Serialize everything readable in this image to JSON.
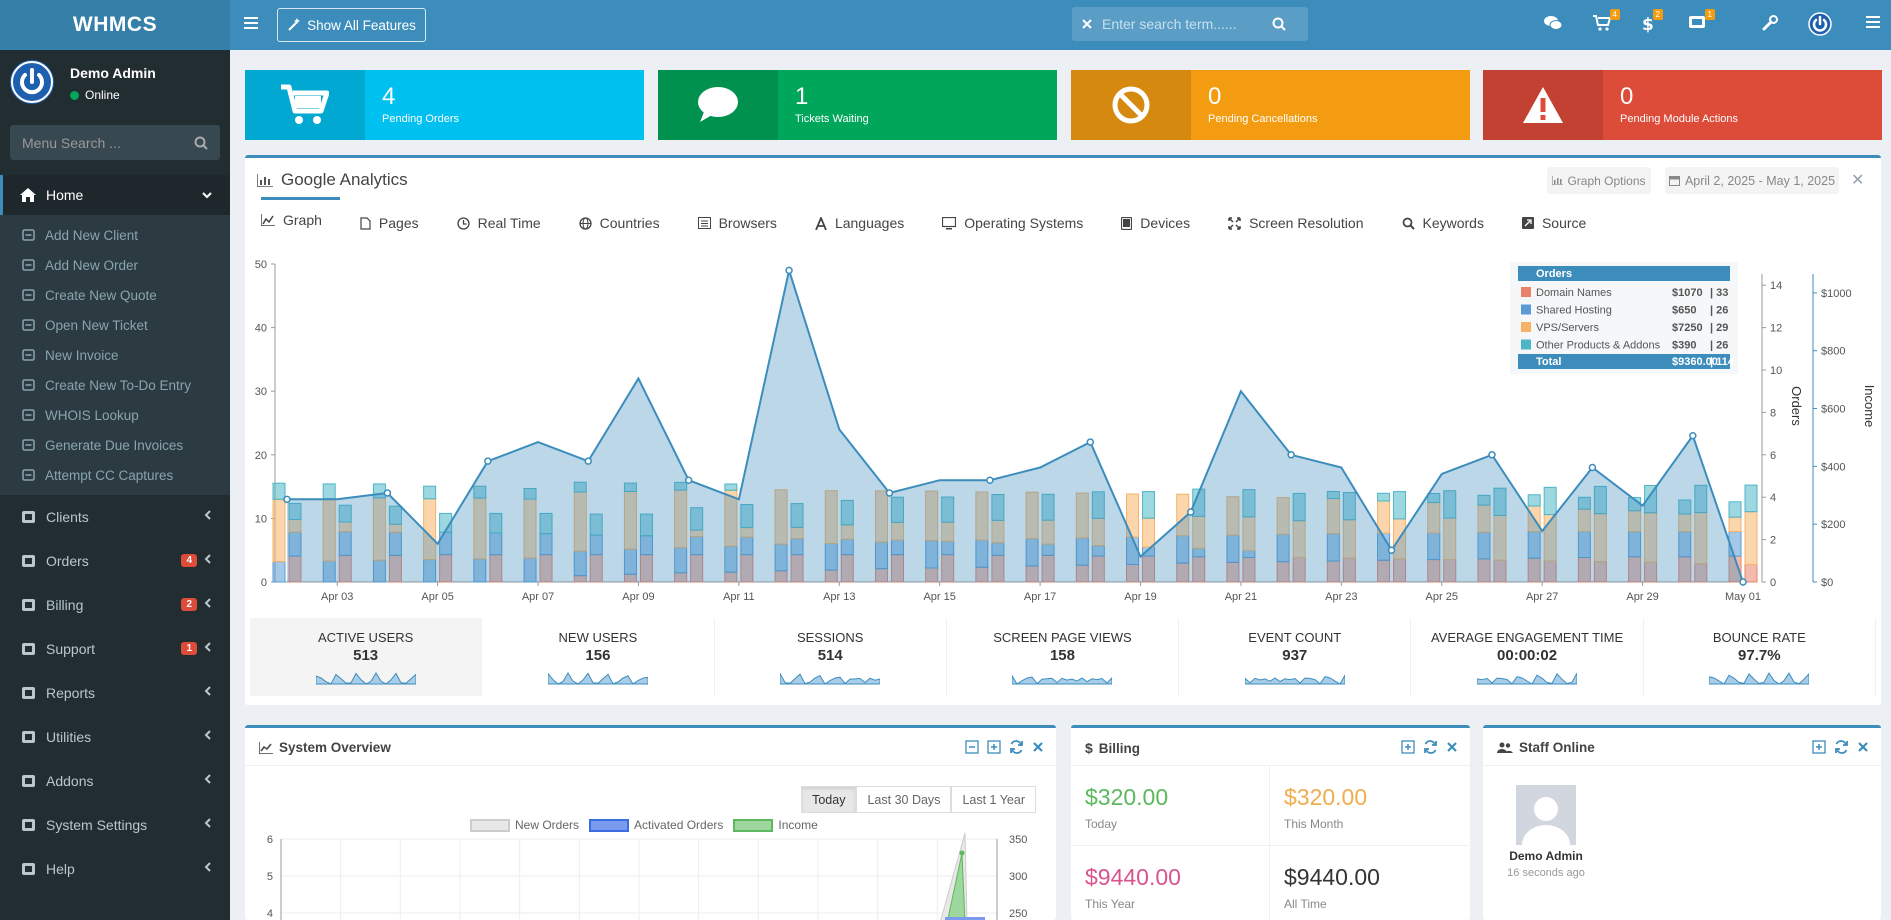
{
  "brand": "WHMCS",
  "user": {
    "name": "Demo Admin",
    "status": "Online"
  },
  "menu_search": {
    "placeholder": "Menu Search ..."
  },
  "nav": {
    "home": "Home",
    "home_sub": [
      "Add New Client",
      "Add New Order",
      "Create New Quote",
      "Open New Ticket",
      "New Invoice",
      "Create New To-Do Entry",
      "WHOIS Lookup",
      "Generate Due Invoices",
      "Attempt CC Captures"
    ],
    "items": [
      {
        "label": "Clients",
        "badge": ""
      },
      {
        "label": "Orders",
        "badge": "4"
      },
      {
        "label": "Billing",
        "badge": "2"
      },
      {
        "label": "Support",
        "badge": "1"
      },
      {
        "label": "Reports",
        "badge": ""
      },
      {
        "label": "Utilities",
        "badge": ""
      },
      {
        "label": "Addons",
        "badge": ""
      },
      {
        "label": "System Settings",
        "badge": ""
      },
      {
        "label": "Help",
        "badge": ""
      }
    ]
  },
  "header": {
    "show_all": "Show All Features",
    "search_placeholder": "Enter search term......",
    "badges": {
      "cart": "4",
      "dollar": "2",
      "ticket": "1"
    }
  },
  "colors": {
    "blue": "#00c0ef",
    "green": "#00a65a",
    "orange": "#f39c12",
    "red": "#dd4b39",
    "primary": "#3c8dbc"
  },
  "stats": [
    {
      "num": "4",
      "label": "Pending Orders",
      "icon": "cart-icon"
    },
    {
      "num": "1",
      "label": "Tickets Waiting",
      "icon": "comment-icon"
    },
    {
      "num": "0",
      "label": "Pending Cancellations",
      "icon": "ban-icon"
    },
    {
      "num": "0",
      "label": "Pending Module Actions",
      "icon": "warning-icon"
    }
  ],
  "analytics": {
    "title": "Google Analytics",
    "graph_options": "Graph Options",
    "date_range": "April 2, 2025 - May 1, 2025",
    "tabs": [
      "Graph",
      "Pages",
      "Real Time",
      "Countries",
      "Browsers",
      "Languages",
      "Operating Systems",
      "Devices",
      "Screen Resolution",
      "Keywords",
      "Source"
    ],
    "metrics": [
      {
        "label": "Active Users",
        "value": "513"
      },
      {
        "label": "New Users",
        "value": "156"
      },
      {
        "label": "Sessions",
        "value": "514"
      },
      {
        "label": "Screen Page Views",
        "value": "158"
      },
      {
        "label": "Event Count",
        "value": "937"
      },
      {
        "label": "Average Engagement Time",
        "value": "00:00:02"
      },
      {
        "label": "Bounce Rate",
        "value": "97.7%"
      }
    ]
  },
  "chart_data": [
    {
      "type": "bar",
      "title": "",
      "x_ticks": [
        "Apr 03",
        "Apr 05",
        "Apr 07",
        "Apr 09",
        "Apr 11",
        "Apr 13",
        "Apr 15",
        "Apr 17",
        "Apr 19",
        "Apr 21",
        "Apr 23",
        "Apr 25",
        "Apr 27",
        "Apr 29",
        "May 01"
      ],
      "y_left_ticks": [
        0,
        10,
        20,
        30,
        40,
        50
      ],
      "ylim_left": [
        0,
        50
      ],
      "y_orders_ticks": [
        0,
        2,
        4,
        6,
        8,
        10,
        12,
        14
      ],
      "ylim_orders": [
        0,
        15
      ],
      "y_income_ticks": [
        "$0",
        "$200",
        "$400",
        "$600",
        "$800",
        "$1000"
      ],
      "ylim_income": [
        0,
        1100
      ],
      "ylabel_orders": "Orders",
      "ylabel_income": "Income",
      "users_line": [
        13,
        13,
        14,
        6,
        19,
        22,
        19,
        32,
        16,
        13,
        49,
        24,
        14,
        16,
        16,
        18,
        22,
        4,
        11,
        30,
        20,
        18,
        5,
        17,
        20,
        8,
        18,
        12,
        23,
        0
      ],
      "series_colors": {
        "domain": "#e8836a",
        "shared": "#5a9bd5",
        "vps": "#f7b268",
        "other": "#4db6c6"
      },
      "legend": {
        "title": "Orders",
        "rows": [
          {
            "name": "Domain Names",
            "amount": "$1070",
            "count": "33",
            "color": "#e8836a"
          },
          {
            "name": "Shared Hosting",
            "amount": "$650",
            "count": "26",
            "color": "#5a9bd5"
          },
          {
            "name": "VPS/Servers",
            "amount": "$7250",
            "count": "29",
            "color": "#f7b268"
          },
          {
            "name": "Other Products & Addons",
            "amount": "$390",
            "count": "26",
            "color": "#4db6c6"
          }
        ],
        "total": {
          "name": "Total",
          "amount": "$9360.00",
          "count": "114"
        }
      }
    },
    {
      "type": "line",
      "title": "",
      "series_names": [
        "New Orders",
        "Activated Orders",
        "Income"
      ],
      "y_left_ticks": [
        4,
        5,
        6
      ],
      "y_right_ticks": [
        250,
        300,
        350
      ]
    }
  ],
  "system_overview": {
    "title": "System Overview",
    "buttons": [
      "Today",
      "Last 30 Days",
      "Last 1 Year"
    ]
  },
  "billing": {
    "title": "Billing",
    "cells": [
      {
        "amount": "$320.00",
        "label": "Today",
        "color": "#5cb85c"
      },
      {
        "amount": "$320.00",
        "label": "This Month",
        "color": "#f0ad4e"
      },
      {
        "amount": "$9440.00",
        "label": "This Year",
        "color": "#d9538f"
      },
      {
        "amount": "$9440.00",
        "label": "All Time",
        "color": "#333333"
      }
    ]
  },
  "staff": {
    "title": "Staff Online",
    "name": "Demo Admin",
    "time": "16 seconds ago"
  }
}
